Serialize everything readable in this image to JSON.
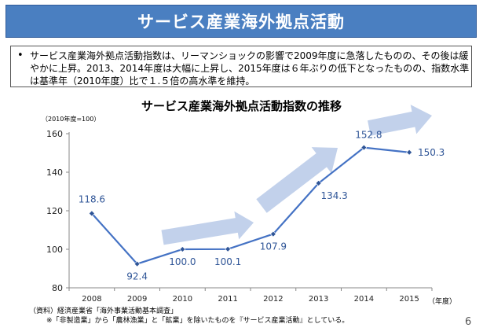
{
  "slide": {
    "title": "サービス産業海外拠点活動",
    "bullet": "サービス産業海外拠点活動指数は、リーマンショックの影響で2009年度に急落したものの、その後は緩やかに上昇。2013、2014年度は大幅に上昇し、2015年度は６年ぶりの低下となったものの、指数水準は基準年（2010年度）比で１.５倍の高水準を維持。",
    "source_line1": "（資料）経済産業省「海外事業活動基本調査」",
    "source_line2": "※「非製造業」から「農林漁業」と「鉱業」を除いたものを『サービス産業活動』としている。",
    "page_number": "6"
  },
  "chart_data": {
    "type": "line",
    "title": "サービス産業海外拠点活動指数の推移",
    "y_unit_note": "（2010年度=100）",
    "x_unit_note": "（年度）",
    "categories": [
      "2008",
      "2009",
      "2010",
      "2011",
      "2012",
      "2013",
      "2014",
      "2015"
    ],
    "series": [
      {
        "values": [
          118.6,
          92.4,
          100.0,
          100.1,
          107.9,
          134.3,
          152.8,
          150.3
        ]
      }
    ],
    "value_labels": [
      "118.6",
      "92.4",
      "100.0",
      "100.1",
      "107.9",
      "134.3",
      "152.8",
      "150.3"
    ],
    "ylim": [
      80,
      160
    ],
    "yticks": [
      "80",
      "100",
      "120",
      "140",
      "160"
    ],
    "grid": false,
    "colors": {
      "line": "#4472c4",
      "marker": "#2f5597",
      "label": "#2f5597",
      "arrow": "#b7c9e8"
    }
  }
}
